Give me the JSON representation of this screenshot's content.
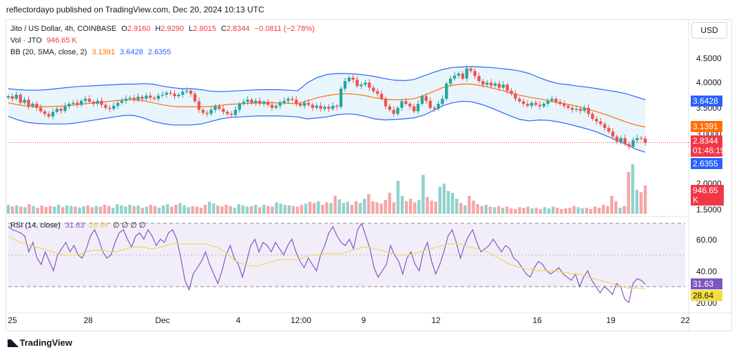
{
  "header": {
    "publish_line": "reflectordayo published on TradingView.com, Dec 20, 2024 10:13 UTC"
  },
  "legend": {
    "symbol": "Jito / US Dollar, 4h, COINBASE",
    "open_label": "O",
    "open": "2.9160",
    "high_label": "H",
    "high": "2.9290",
    "low_label": "L",
    "low": "2.8015",
    "close_label": "C",
    "close": "2.8344",
    "change": "−0.0811 (−2.78%)",
    "vol_label": "Vol · JTO",
    "vol_value": "946.65 K",
    "bb_label": "BB (20, SMA, close, 2)",
    "bb_basis": "3.1391",
    "bb_upper": "3.6428",
    "bb_lower": "2.6355",
    "rsi_label": "RSI (14, close)",
    "rsi_value": "31.63",
    "rsi_ma": "28.64",
    "rsi_extra": "∅ ∅ ∅ ∅"
  },
  "currency_button": "USD",
  "price_axis": {
    "ticks": [
      "4.5000",
      "4.0000",
      "3.5000",
      "3.0000",
      "2.0000",
      "1.5000"
    ],
    "badges": {
      "bb_upper": "3.6428",
      "bb_basis": "3.1391",
      "last_price": "2.8344",
      "countdown": "01:46:19",
      "bb_lower": "2.6355",
      "volume": "946.65 K"
    }
  },
  "rsi_axis": {
    "ticks": [
      "60.00",
      "40.00",
      "20.00"
    ],
    "badges": {
      "rsi": "31.63",
      "rsi_ma": "28.64"
    }
  },
  "time_axis": [
    "25",
    "28",
    "Dec",
    "4",
    "12:00",
    "9",
    "12",
    "16",
    "19",
    "22"
  ],
  "brand": "TradingView",
  "colors": {
    "up": "#26a69a",
    "down": "#ef5350",
    "vol_up": "#8fd3cc",
    "vol_down": "#f5a6a6",
    "bb_band": "#2962ff",
    "bb_basis": "#ff6d00",
    "bb_fill": "#e3f2fd",
    "rsi": "#7e57c2",
    "rsi_ma": "#f2d45c",
    "rsi_fill": "#ede7f6"
  },
  "chart_data": {
    "type": "candlestick",
    "price_ylim": [
      1.4,
      4.9
    ],
    "rsi_ylim": [
      15,
      75
    ],
    "rsi_levels": [
      70,
      50,
      30
    ],
    "candles_close": [
      3.75,
      3.7,
      3.78,
      3.62,
      3.68,
      3.55,
      3.6,
      3.52,
      3.45,
      3.4,
      3.35,
      3.44,
      3.5,
      3.46,
      3.55,
      3.6,
      3.62,
      3.58,
      3.66,
      3.7,
      3.64,
      3.6,
      3.66,
      3.58,
      3.52,
      3.5,
      3.56,
      3.62,
      3.66,
      3.7,
      3.72,
      3.68,
      3.74,
      3.7,
      3.76,
      3.72,
      3.7,
      3.76,
      3.78,
      3.82,
      3.8,
      3.75,
      3.78,
      3.84,
      3.86,
      3.8,
      3.65,
      3.48,
      3.42,
      3.4,
      3.48,
      3.55,
      3.5,
      3.44,
      3.4,
      3.38,
      3.48,
      3.6,
      3.64,
      3.68,
      3.62,
      3.66,
      3.6,
      3.64,
      3.58,
      3.52,
      3.56,
      3.62,
      3.66,
      3.7,
      3.68,
      3.6,
      3.56,
      3.62,
      3.58,
      3.52,
      3.56,
      3.5,
      3.54,
      3.5,
      3.56,
      3.54,
      3.9,
      4.05,
      4.12,
      4.08,
      3.95,
      3.98,
      4.02,
      3.92,
      3.85,
      3.8,
      3.7,
      3.55,
      3.48,
      3.4,
      3.52,
      3.65,
      3.6,
      3.55,
      3.45,
      3.6,
      3.75,
      3.66,
      3.52,
      3.5,
      3.6,
      3.7,
      4.0,
      4.1,
      4.16,
      4.2,
      4.1,
      4.3,
      4.25,
      4.15,
      4.05,
      3.98,
      4.02,
      3.96,
      4.0,
      3.92,
      3.98,
      3.86,
      3.8,
      3.7,
      3.65,
      3.6,
      3.56,
      3.62,
      3.58,
      3.55,
      3.6,
      3.66,
      3.7,
      3.64,
      3.6,
      3.56,
      3.52,
      3.48,
      3.5,
      3.46,
      3.52,
      3.4,
      3.3,
      3.25,
      3.2,
      3.12,
      3.05,
      2.95,
      2.85,
      2.92,
      2.8,
      2.75,
      2.88,
      2.92,
      2.91,
      2.83
    ],
    "bb_upper": [
      3.9,
      3.88,
      3.87,
      3.87,
      3.88,
      3.9,
      3.92,
      3.94,
      3.95,
      3.96,
      3.97,
      3.98,
      3.99,
      3.99,
      4.0,
      3.99,
      3.95,
      3.92,
      3.9,
      3.9,
      3.88,
      3.85,
      3.84,
      3.85,
      3.86,
      3.87,
      3.88,
      3.88,
      3.88,
      3.87,
      3.86,
      4.02,
      4.12,
      4.18,
      4.2,
      4.2,
      4.19,
      4.17,
      4.14,
      4.1,
      4.07,
      4.06,
      4.08,
      4.15,
      4.22,
      4.28,
      4.32,
      4.33,
      4.34,
      4.33,
      4.32,
      4.3,
      4.28,
      4.25,
      4.2,
      4.12,
      4.05,
      4.0,
      3.98,
      3.95,
      3.93,
      3.9,
      3.87,
      3.84,
      3.8,
      3.74,
      3.68
    ],
    "bb_basis": [
      3.62,
      3.58,
      3.55,
      3.54,
      3.54,
      3.55,
      3.56,
      3.58,
      3.6,
      3.62,
      3.64,
      3.66,
      3.68,
      3.68,
      3.66,
      3.62,
      3.58,
      3.55,
      3.54,
      3.54,
      3.54,
      3.55,
      3.57,
      3.59,
      3.6,
      3.61,
      3.62,
      3.62,
      3.62,
      3.61,
      3.6,
      3.66,
      3.72,
      3.76,
      3.79,
      3.8,
      3.79,
      3.76,
      3.72,
      3.69,
      3.68,
      3.68,
      3.7,
      3.76,
      3.84,
      3.92,
      3.97,
      3.99,
      3.99,
      3.96,
      3.92,
      3.87,
      3.82,
      3.77,
      3.73,
      3.7,
      3.66,
      3.62,
      3.59,
      3.55,
      3.5,
      3.44,
      3.38,
      3.31,
      3.24,
      3.18,
      3.14
    ],
    "bb_lower": [
      3.35,
      3.28,
      3.23,
      3.21,
      3.2,
      3.2,
      3.2,
      3.22,
      3.25,
      3.28,
      3.31,
      3.34,
      3.37,
      3.37,
      3.32,
      3.25,
      3.21,
      3.18,
      3.18,
      3.18,
      3.2,
      3.25,
      3.3,
      3.33,
      3.34,
      3.35,
      3.36,
      3.36,
      3.36,
      3.35,
      3.34,
      3.3,
      3.32,
      3.34,
      3.38,
      3.4,
      3.39,
      3.35,
      3.3,
      3.28,
      3.29,
      3.3,
      3.32,
      3.37,
      3.46,
      3.56,
      3.62,
      3.65,
      3.64,
      3.59,
      3.52,
      3.44,
      3.36,
      3.29,
      3.26,
      3.28,
      3.27,
      3.24,
      3.2,
      3.15,
      3.1,
      3.04,
      2.96,
      2.88,
      2.8,
      2.7,
      2.64
    ],
    "volume_k": [
      300,
      250,
      280,
      240,
      220,
      320,
      260,
      200,
      280,
      230,
      260,
      240,
      300,
      220,
      280,
      260,
      240,
      210,
      250,
      280,
      220,
      260,
      240,
      300,
      260,
      200,
      320,
      280,
      240,
      300,
      260,
      280,
      200,
      240,
      300,
      260,
      200,
      280,
      320,
      240,
      300,
      360,
      280,
      220,
      260,
      240,
      200,
      300,
      400,
      350,
      280,
      240,
      300,
      260,
      200,
      320,
      280,
      240,
      260,
      300,
      220,
      300,
      260,
      240,
      380,
      340,
      300,
      280,
      260,
      240,
      300,
      340,
      400,
      360,
      420,
      300,
      380,
      360,
      600,
      480,
      360,
      400,
      300,
      420,
      360,
      500,
      650,
      420,
      380,
      340,
      460,
      700,
      380,
      1100,
      600,
      420,
      500,
      380,
      460,
      1300,
      560,
      440,
      400,
      900,
      1000,
      760,
      700,
      500,
      360,
      280,
      600,
      440,
      320,
      260,
      300,
      240,
      220,
      260,
      200,
      240,
      180,
      160,
      220,
      200,
      240,
      180,
      200,
      160,
      220,
      180,
      240,
      200,
      160,
      180,
      200,
      260,
      220,
      180,
      200,
      160,
      240,
      200,
      300,
      260,
      600,
      420,
      200,
      260,
      1400,
      1650,
      800,
      720,
      946
    ],
    "rsi": [
      68,
      66,
      65,
      64,
      62,
      52,
      58,
      48,
      44,
      52,
      46,
      40,
      50,
      54,
      58,
      52,
      56,
      50,
      48,
      54,
      62,
      66,
      60,
      52,
      48,
      50,
      58,
      64,
      66,
      60,
      55,
      62,
      64,
      60,
      66,
      62,
      56,
      60,
      58,
      64,
      66,
      60,
      48,
      34,
      28,
      38,
      42,
      46,
      52,
      44,
      38,
      32,
      40,
      50,
      56,
      48,
      44,
      36,
      46,
      56,
      60,
      52,
      58,
      56,
      52,
      58,
      54,
      50,
      56,
      60,
      52,
      46,
      42,
      48,
      44,
      40,
      50,
      56,
      64,
      68,
      62,
      58,
      56,
      60,
      54,
      66,
      70,
      62,
      54,
      42,
      36,
      40,
      44,
      56,
      50,
      46,
      38,
      48,
      52,
      44,
      40,
      52,
      58,
      46,
      38,
      44,
      52,
      62,
      66,
      58,
      48,
      56,
      62,
      66,
      58,
      52,
      54,
      56,
      60,
      56,
      52,
      56,
      54,
      48,
      46,
      42,
      38,
      36,
      42,
      46,
      44,
      40,
      38,
      40,
      42,
      38,
      36,
      34,
      38,
      30,
      36,
      40,
      34,
      30,
      26,
      30,
      28,
      25,
      32,
      30,
      22,
      20,
      32,
      35,
      34,
      31.6
    ],
    "rsi_ma": [
      62,
      60,
      58,
      57,
      56,
      55,
      54,
      53,
      52,
      51,
      50,
      50,
      50,
      51,
      52,
      53,
      53,
      53,
      52,
      52,
      53,
      54,
      55,
      55,
      55,
      54,
      54,
      55,
      56,
      57,
      57,
      57,
      57,
      57,
      57,
      57,
      56,
      55,
      53,
      50,
      47,
      45,
      44,
      43,
      43,
      44,
      45,
      46,
      47,
      47,
      47,
      47,
      48,
      49,
      50,
      50,
      51,
      51,
      51,
      51,
      52,
      53,
      54,
      55,
      55,
      54,
      53,
      52,
      51,
      50,
      50,
      50,
      51,
      52,
      53,
      54,
      55,
      56,
      57,
      57,
      57,
      56,
      55,
      54,
      53,
      52,
      50,
      48,
      46,
      44,
      43,
      42,
      41,
      41,
      40,
      40,
      40,
      40,
      39,
      39,
      38,
      38,
      37,
      36,
      35,
      34,
      33,
      32,
      31,
      30,
      29,
      29,
      29,
      28.6
    ]
  }
}
